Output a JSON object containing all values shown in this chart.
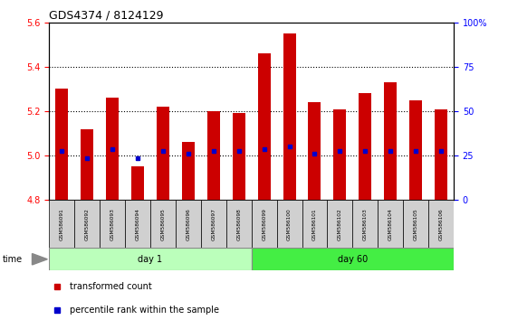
{
  "title": "GDS4374 / 8124129",
  "samples": [
    "GSM586091",
    "GSM586092",
    "GSM586093",
    "GSM586094",
    "GSM586095",
    "GSM586096",
    "GSM586097",
    "GSM586098",
    "GSM586099",
    "GSM586100",
    "GSM586101",
    "GSM586102",
    "GSM586103",
    "GSM586104",
    "GSM586105",
    "GSM586106"
  ],
  "bar_bottoms": [
    4.8,
    4.8,
    4.8,
    4.8,
    4.8,
    4.8,
    4.8,
    4.8,
    4.8,
    4.8,
    4.8,
    4.8,
    4.8,
    4.8,
    4.8,
    4.8
  ],
  "bar_tops": [
    5.3,
    5.12,
    5.26,
    4.95,
    5.22,
    5.06,
    5.2,
    5.19,
    5.46,
    5.55,
    5.24,
    5.21,
    5.28,
    5.33,
    5.25,
    5.21
  ],
  "blue_dots": [
    5.02,
    4.99,
    5.03,
    4.99,
    5.02,
    5.01,
    5.02,
    5.02,
    5.03,
    5.04,
    5.01,
    5.02,
    5.02,
    5.02,
    5.02,
    5.02
  ],
  "day1_samples": 8,
  "day60_samples": 8,
  "ylim": [
    4.8,
    5.6
  ],
  "yticks_left": [
    4.8,
    5.0,
    5.2,
    5.4,
    5.6
  ],
  "yticks_right": [
    0,
    25,
    50,
    75,
    100
  ],
  "bar_color": "#cc0000",
  "dot_color": "#0000cc",
  "day1_color": "#bbffbb",
  "day60_color": "#44ee44",
  "bar_width": 0.5,
  "legend_red_label": "transformed count",
  "legend_blue_label": "percentile rank within the sample",
  "label_box_color": "#d0d0d0",
  "gridline_ticks": [
    5.0,
    5.2,
    5.4
  ]
}
